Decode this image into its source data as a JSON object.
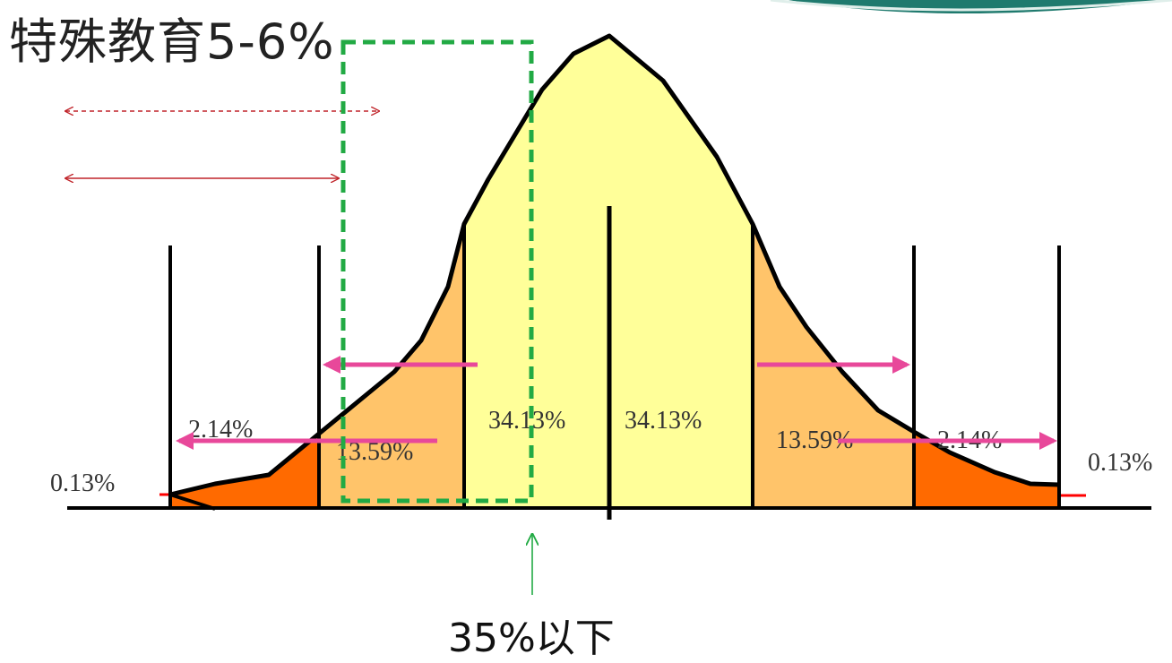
{
  "title": "特殊教育5-6%",
  "caption": "35%以下",
  "bands": [
    {
      "label": "0.13%"
    },
    {
      "label": "2.14%"
    },
    {
      "label": "13.59%"
    },
    {
      "label": "34.13%"
    },
    {
      "label": "34.13%"
    },
    {
      "label": "13.59%"
    },
    {
      "label": "2.14%"
    },
    {
      "label": "0.13%"
    }
  ],
  "colors": {
    "outer_fill": "#ff6a00",
    "middle_fill": "#ffc46a",
    "center_fill": "#ffff99",
    "curve_stroke": "#000000",
    "curve_shadow": "#ff0000",
    "pink_arrow": "#e8489a",
    "green_box": "#22aa44",
    "red_arrow": "#c0242a",
    "teal_arc": "#1f7a6e"
  }
}
